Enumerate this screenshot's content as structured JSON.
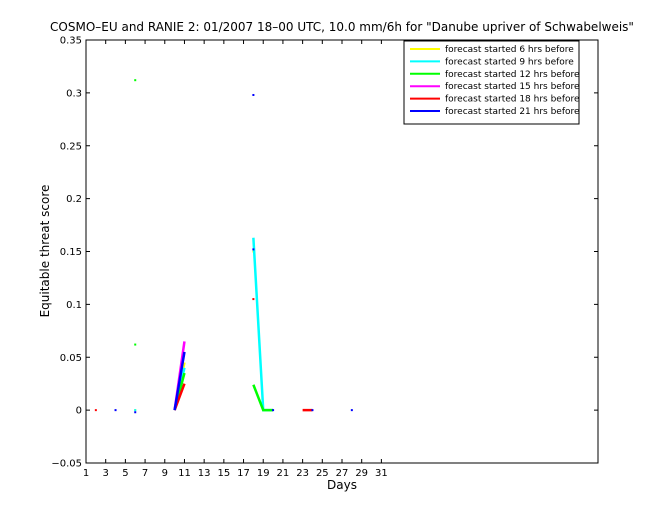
{
  "chart_data": {
    "type": "line",
    "title": "COSMO–EU and RANIE 2: 01/2007 18–00 UTC, 10.0 mm/6h for \"Danube upriver of Schwabelweis\"",
    "xlabel": "Days",
    "ylabel": "Equitable threat score",
    "xlim": [
      1,
      53
    ],
    "ylim": [
      -0.05,
      0.35
    ],
    "xticks": [
      1,
      3,
      5,
      7,
      9,
      11,
      13,
      15,
      17,
      19,
      21,
      23,
      25,
      27,
      29,
      31
    ],
    "yticks": [
      -0.05,
      0,
      0.05,
      0.1,
      0.15,
      0.2,
      0.25,
      0.3,
      0.35
    ],
    "ytick_labels": [
      "−0.05",
      "0",
      "0.05",
      "0.1",
      "0.15",
      "0.2",
      "0.25",
      "0.3",
      "0.35"
    ],
    "grid": false,
    "legend_position": "top-right",
    "series": [
      {
        "name": "forecast started 6 hrs before",
        "color": "#ffff00",
        "segments": [
          [
            [
              10,
              0.0
            ],
            [
              11,
              0.045
            ]
          ],
          [
            [
              18,
              0.15
            ]
          ],
          [
            [
              6,
              0.0
            ]
          ]
        ]
      },
      {
        "name": "forecast started 9 hrs before",
        "color": "#00ffff",
        "segments": [
          [
            [
              18,
              0.163
            ],
            [
              19,
              0.0
            ],
            [
              20,
              0.0
            ]
          ],
          [
            [
              10,
              0.0
            ],
            [
              11,
              0.04
            ]
          ],
          [
            [
              6,
              0.0
            ]
          ]
        ]
      },
      {
        "name": "forecast started 12 hrs before",
        "color": "#00ff00",
        "segments": [
          [
            [
              18,
              0.024
            ],
            [
              19,
              0.0
            ],
            [
              20,
              0.0
            ]
          ],
          [
            [
              10,
              0.0
            ],
            [
              11,
              0.035
            ]
          ],
          [
            [
              6,
              0.312
            ]
          ],
          [
            [
              6,
              0.062
            ]
          ]
        ]
      },
      {
        "name": "forecast started 15 hrs before",
        "color": "#ff00ff",
        "segments": [
          [
            [
              10,
              0.0
            ],
            [
              11,
              0.065
            ]
          ]
        ]
      },
      {
        "name": "forecast started 18 hrs before",
        "color": "#ff0000",
        "segments": [
          [
            [
              10,
              0.0
            ],
            [
              11,
              0.025
            ]
          ],
          [
            [
              23,
              0.0
            ],
            [
              24,
              0.0
            ]
          ],
          [
            [
              2,
              0.0
            ]
          ],
          [
            [
              18,
              0.105
            ]
          ]
        ]
      },
      {
        "name": "forecast started 21 hrs before",
        "color": "#0000ff",
        "segments": [
          [
            [
              10,
              0.0
            ],
            [
              11,
              0.055
            ]
          ],
          [
            [
              18,
              0.298
            ]
          ],
          [
            [
              18,
              0.152
            ]
          ],
          [
            [
              4,
              0.0
            ]
          ],
          [
            [
              6,
              -0.002
            ]
          ],
          [
            [
              20,
              0.0
            ]
          ],
          [
            [
              24,
              0.0
            ]
          ],
          [
            [
              28,
              0.0
            ]
          ]
        ]
      }
    ]
  }
}
